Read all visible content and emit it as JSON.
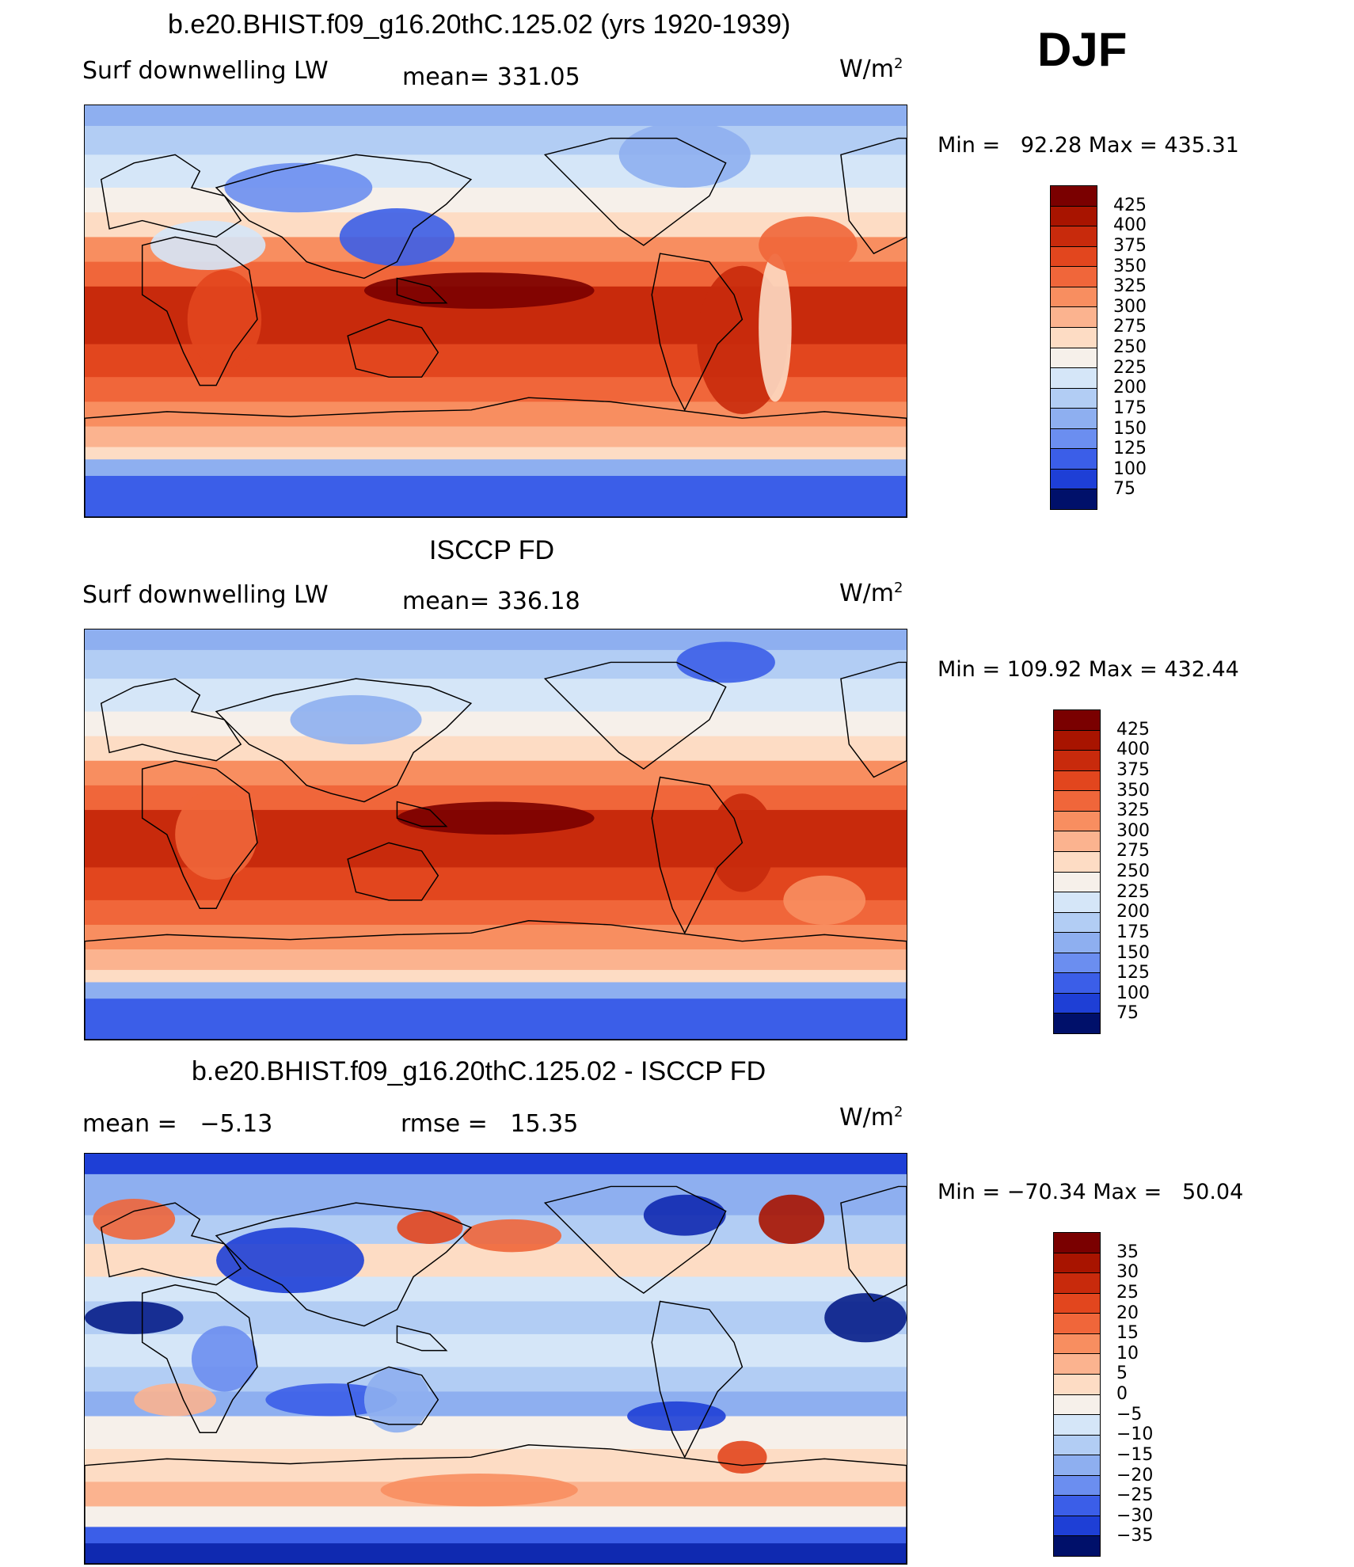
{
  "season": "DJF",
  "panels": [
    {
      "title": "b.e20.BHIST.f09_g16.20thC.125.02 (yrs 1920-1939)",
      "left_label": "Surf downwelling LW",
      "center_label": "mean= 331.05",
      "units": "W/m",
      "units_exp": "2",
      "minmax": "Min =   92.28 Max = 435.31",
      "field": "absolute",
      "colorbar_labels": [
        "425",
        "400",
        "375",
        "350",
        "325",
        "300",
        "275",
        "250",
        "225",
        "200",
        "175",
        "150",
        "125",
        "100",
        "75"
      ]
    },
    {
      "title": "ISCCP FD",
      "left_label": "Surf downwelling LW",
      "center_label": "mean= 336.18",
      "units": "W/m",
      "units_exp": "2",
      "minmax": "Min = 109.92 Max = 432.44",
      "field": "absolute",
      "colorbar_labels": [
        "425",
        "400",
        "375",
        "350",
        "325",
        "300",
        "275",
        "250",
        "225",
        "200",
        "175",
        "150",
        "125",
        "100",
        "75"
      ]
    },
    {
      "title": "b.e20.BHIST.f09_g16.20thC.125.02 - ISCCP FD",
      "left_label": "mean =   −5.13",
      "center_label": "rmse =   15.35",
      "units": "W/m",
      "units_exp": "2",
      "minmax": "Min = −70.34 Max =   50.04",
      "field": "difference",
      "colorbar_labels": [
        "35",
        "30",
        "25",
        "20",
        "15",
        "10",
        "5",
        "0",
        "−5",
        "−10",
        "−15",
        "−20",
        "−25",
        "−30",
        "−35"
      ]
    }
  ],
  "colors": {
    "absolute": [
      "#7a0000",
      "#a81400",
      "#c82a0c",
      "#e2461e",
      "#f0663a",
      "#f88e60",
      "#fbb38f",
      "#fddcc4",
      "#f6f0ea",
      "#d5e6f8",
      "#b2cdf4",
      "#8eaff0",
      "#6b8ef0",
      "#3b5ee8",
      "#1e3fd6",
      "#0f29b0",
      "#051d88",
      "#00106a"
    ],
    "difference": [
      "#7a0000",
      "#a81400",
      "#c82a0c",
      "#e2461e",
      "#f0663a",
      "#f88e60",
      "#fbb38f",
      "#fddcc4",
      "#f6f0ea",
      "#d5e6f8",
      "#b2cdf4",
      "#8eaff0",
      "#6b8ef0",
      "#3b5ee8",
      "#1e3fd6",
      "#0f29b0",
      "#051d88",
      "#00106a"
    ],
    "land_outline": "#000000"
  }
}
